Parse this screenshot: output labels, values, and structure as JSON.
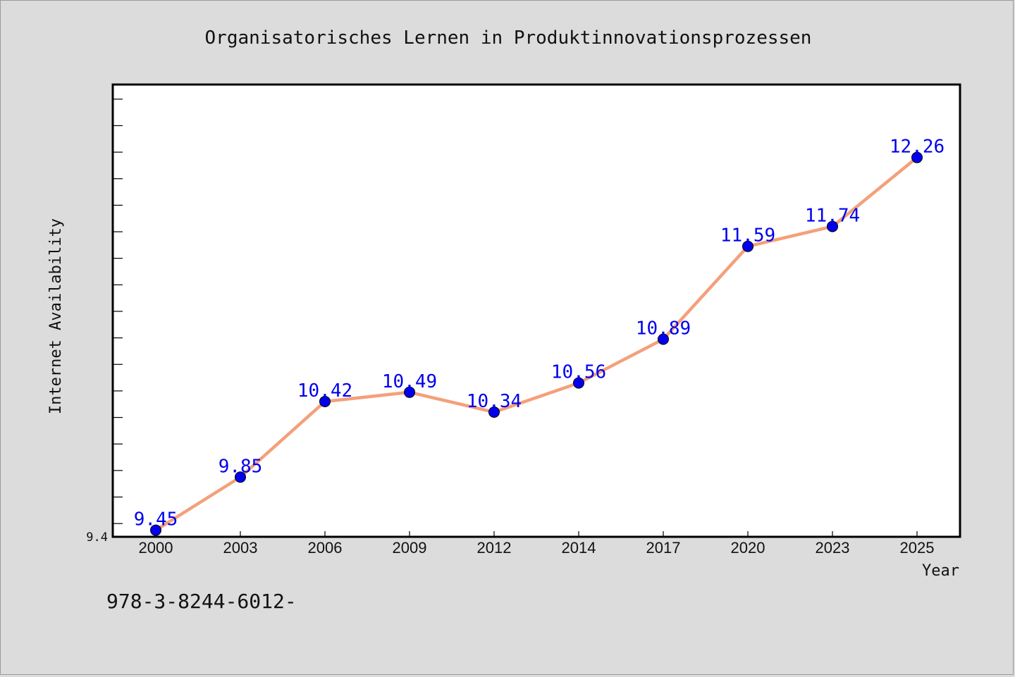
{
  "chart_data": {
    "type": "line",
    "title": "Organisatorisches Lernen in Produktinnovationsprozessen",
    "xlabel": "Year",
    "ylabel": "Internet Availability",
    "categories": [
      "2000",
      "2003",
      "2006",
      "2009",
      "2012",
      "2014",
      "2017",
      "2020",
      "2023",
      "2025"
    ],
    "series": [
      {
        "values": [
          9.45,
          9.85,
          10.42,
          10.49,
          10.34,
          10.56,
          10.89,
          11.59,
          11.74,
          12.26
        ]
      }
    ],
    "data_labels": [
      "9.45",
      "9.85",
      "10.42",
      "10.49",
      "10.34",
      "10.56",
      "10.89",
      "11.59",
      "11.74",
      "12.26"
    ],
    "y_tick_labels": [
      "9.4"
    ],
    "ylim": [
      9.4,
      12.81
    ],
    "grid": false,
    "legend": "none",
    "colors": {
      "line": "#f4a07a",
      "marker": "#0000ee",
      "label": "#0000ee",
      "background": "#dcdcdc",
      "plot_background": "#ffffff"
    }
  },
  "footer": {
    "text": "978-3-8244-6012-"
  }
}
